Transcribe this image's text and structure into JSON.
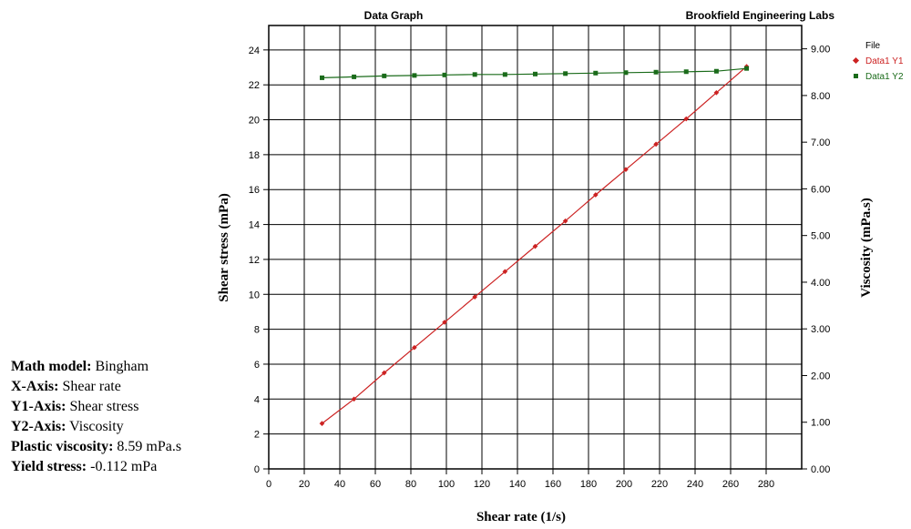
{
  "chart_data": {
    "type": "scatter",
    "title": "Data Graph",
    "subtitle": "Brookfield Engineering Labs",
    "xlabel": "Shear rate (1/s)",
    "ylabel": "Shear stress (mPa)",
    "y2label": "Viscosity (mPa.s)",
    "xlim": [
      0,
      300
    ],
    "ylim": [
      0,
      25.4
    ],
    "y2lim": [
      0,
      9.5
    ],
    "x_ticks": [
      0,
      20,
      40,
      60,
      80,
      100,
      120,
      140,
      160,
      180,
      200,
      220,
      240,
      260,
      280
    ],
    "y_ticks": [
      0,
      2,
      4,
      6,
      8,
      10,
      12,
      14,
      16,
      18,
      20,
      22,
      24
    ],
    "y2_ticks": [
      "0.00",
      "1.00",
      "2.00",
      "3.00",
      "4.00",
      "5.00",
      "6.00",
      "7.00",
      "8.00",
      "9.00"
    ],
    "grid": true,
    "legend_title": "File",
    "legend_position": "top-right",
    "series": [
      {
        "name": "Data1 Y1",
        "axis": "y1",
        "color": "#cc2222",
        "marker": "diamond",
        "x": [
          30,
          48,
          65,
          82,
          99,
          116,
          133,
          150,
          167,
          184,
          201,
          218,
          235,
          252,
          269
        ],
        "y": [
          2.6,
          4.0,
          5.5,
          6.95,
          8.4,
          9.85,
          11.3,
          12.75,
          14.2,
          15.7,
          17.15,
          18.6,
          20.05,
          21.55,
          23.05
        ]
      },
      {
        "name": "Data1 Y2",
        "axis": "y2",
        "color": "#1a6b1a",
        "marker": "square",
        "x": [
          30,
          48,
          65,
          82,
          99,
          116,
          133,
          150,
          167,
          184,
          201,
          218,
          235,
          252,
          269
        ],
        "y": [
          8.38,
          8.4,
          8.42,
          8.43,
          8.44,
          8.45,
          8.45,
          8.46,
          8.47,
          8.48,
          8.49,
          8.5,
          8.51,
          8.52,
          8.58
        ]
      }
    ]
  },
  "info": {
    "math_model_label": "Math model:",
    "math_model_value": " Bingham",
    "x_axis_label": "X-Axis:",
    "x_axis_value": " Shear rate",
    "y1_axis_label": "Y1-Axis:",
    "y1_axis_value": " Shear stress",
    "y2_axis_label": "Y2-Axis:",
    "y2_axis_value": " Viscosity",
    "plastic_viscosity_label": "Plastic viscosity:",
    "plastic_viscosity_value": " 8.59 mPa.s",
    "yield_stress_label": "Yield stress:",
    "yield_stress_value": " -0.112 mPa"
  }
}
